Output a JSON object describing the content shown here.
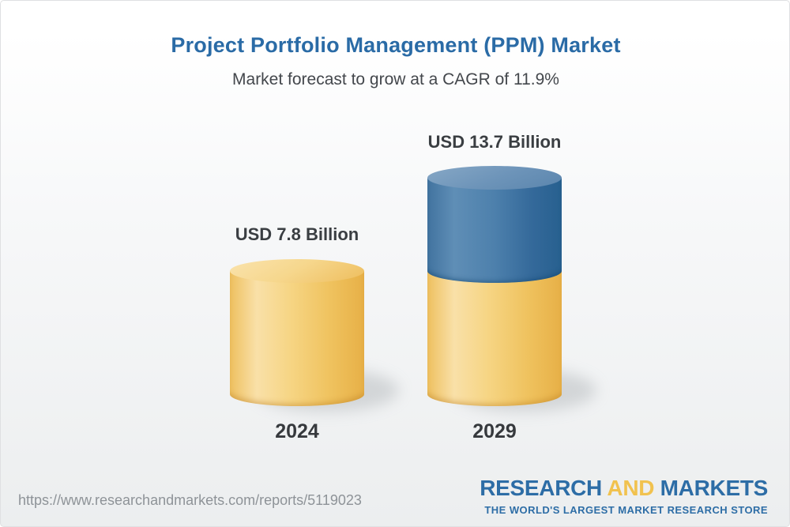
{
  "page": {
    "title": "Project Portfolio Management (PPM) Market",
    "subtitle": "Market forecast to grow at a CAGR of 11.9%",
    "source_url": "https://www.researchandmarkets.com/reports/5119023"
  },
  "chart_data": {
    "type": "bar",
    "variant": "3d-cylinder",
    "categories": [
      "2024",
      "2029"
    ],
    "values": [
      7.8,
      13.7
    ],
    "unit": "USD Billion",
    "value_labels": [
      "USD 7.8 Billion",
      "USD 13.7 Billion"
    ],
    "cagr_percent": "11.9%",
    "ylim": [
      0,
      14
    ],
    "grid": false,
    "legend": "none",
    "colors": {
      "base_segment": "#F3CB6B",
      "growth_segment": "#4579A7",
      "title_text": "#2A6BA6",
      "label_text": "#3A3E42"
    }
  },
  "footer": {
    "logo": {
      "word_research": "RESEARCH",
      "word_and": "AND",
      "word_markets": "MARKETS",
      "tagline": "THE WORLD'S LARGEST MARKET RESEARCH STORE",
      "blue": "#2D6DA6",
      "yellow": "#F1C24F"
    }
  }
}
